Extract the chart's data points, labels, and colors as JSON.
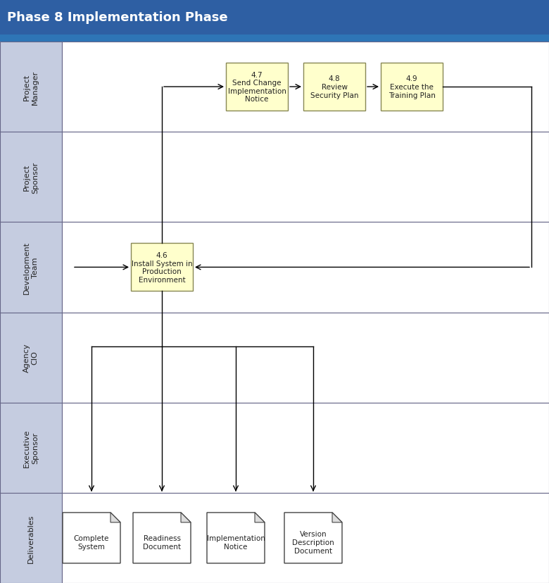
{
  "title": "Phase 8 Implementation Phase",
  "title_bg": "#2E5FA3",
  "title_fg": "#FFFFFF",
  "subtitle_bg": "#2E75B6",
  "lane_label_bg": "#C5CCE0",
  "lane_border": "#666688",
  "lanes": [
    "Project\nManager",
    "Project\nSponsor",
    "Development\nTeam",
    "Agency\nCIO",
    "Executive\nSponsor",
    "Deliverables"
  ],
  "box_fill": "#FFFFCC",
  "box_border": "#888855",
  "doc_fill": "#FFFFFF",
  "doc_border": "#444444",
  "arrow_color": "#000000",
  "line_color": "#000000"
}
